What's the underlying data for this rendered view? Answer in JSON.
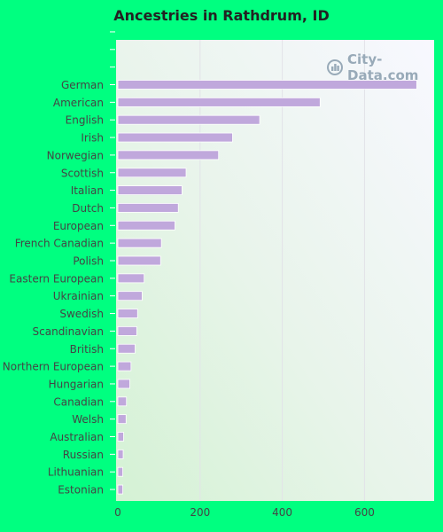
{
  "colors": {
    "background": "#00ff80",
    "bar": "#c0a8dc",
    "bar_border": "#ffffff",
    "grid": "#e2e2e8",
    "text": "#444444"
  },
  "watermark": {
    "text": "City-Data.com",
    "icon": "city-data-logo-icon"
  },
  "chart_data": {
    "type": "bar",
    "orientation": "horizontal",
    "title": "Ancestries in Rathdrum, ID",
    "xlabel": "",
    "ylabel": "",
    "xlim": [
      0,
      770
    ],
    "xticks": [
      0,
      200,
      400,
      600
    ],
    "grid": true,
    "legend": "none",
    "categories": [
      "German",
      "American",
      "English",
      "Irish",
      "Norwegian",
      "Scottish",
      "Italian",
      "Dutch",
      "European",
      "French Canadian",
      "Polish",
      "Eastern European",
      "Ukrainian",
      "Swedish",
      "Scandinavian",
      "British",
      "Northern European",
      "Hungarian",
      "Canadian",
      "Welsh",
      "Australian",
      "Russian",
      "Lithuanian",
      "Estonian"
    ],
    "values": [
      727,
      492,
      345,
      279,
      245,
      166,
      156,
      147,
      139,
      106,
      104,
      64,
      59,
      48,
      46,
      42,
      32,
      29,
      21,
      20,
      14,
      13,
      12,
      12
    ]
  }
}
